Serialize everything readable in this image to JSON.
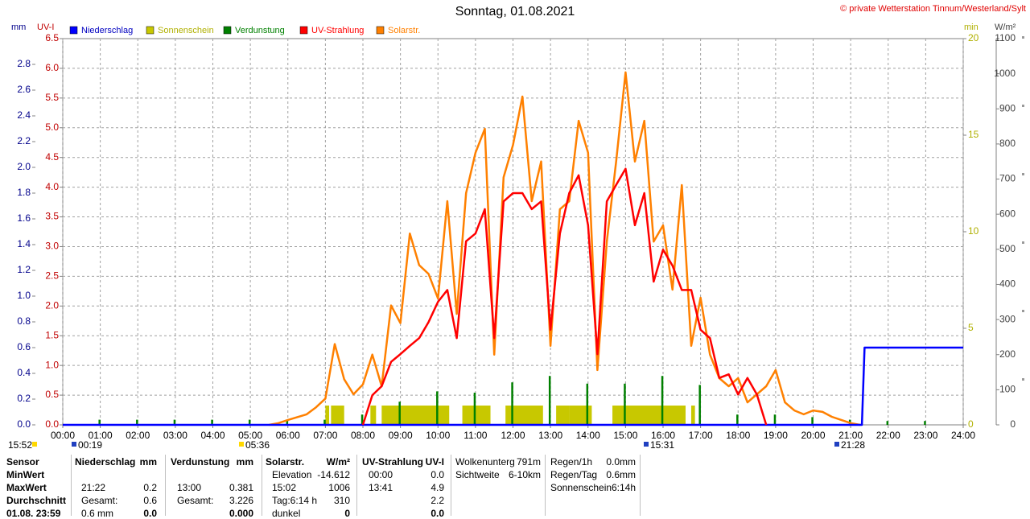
{
  "chart_data": {
    "type": "weather",
    "title": "Sonntag, 01.08.2021",
    "credit": "© private Wetterstation Tinnum/Westerland/Sylt",
    "axis_titles": {
      "mm": "mm",
      "uv": "UV-I",
      "min": "min",
      "solar": "W/m²"
    },
    "xlim": [
      0,
      24
    ],
    "xticks": [
      {
        "value": 0,
        "label": "00:00"
      },
      {
        "value": 1,
        "label": "01:00"
      },
      {
        "value": 2,
        "label": "02:00"
      },
      {
        "value": 3,
        "label": "03:00"
      },
      {
        "value": 4,
        "label": "04:00"
      },
      {
        "value": 5,
        "label": "05:00"
      },
      {
        "value": 6,
        "label": "06:00"
      },
      {
        "value": 7,
        "label": "07:00"
      },
      {
        "value": 8,
        "label": "08:00"
      },
      {
        "value": 9,
        "label": "09:00"
      },
      {
        "value": 10,
        "label": "10:00"
      },
      {
        "value": 11,
        "label": "11:00"
      },
      {
        "value": 12,
        "label": "12:00"
      },
      {
        "value": 13,
        "label": "13:00"
      },
      {
        "value": 14,
        "label": "14:00"
      },
      {
        "value": 15,
        "label": "15:00"
      },
      {
        "value": 16,
        "label": "16:00"
      },
      {
        "value": 17,
        "label": "17:00"
      },
      {
        "value": 18,
        "label": "18:00"
      },
      {
        "value": 19,
        "label": "19:00"
      },
      {
        "value": 20,
        "label": "20:00"
      },
      {
        "value": 21,
        "label": "21:00"
      },
      {
        "value": 22,
        "label": "22:00"
      },
      {
        "value": 23,
        "label": "23:00"
      },
      {
        "value": 24,
        "label": "24:00"
      }
    ],
    "ylim": [
      0,
      3
    ],
    "yticks": [
      {
        "value": 0,
        "label": "0.0"
      },
      0.2,
      0.4,
      0.6,
      0.8,
      {
        "value": 1,
        "label": "1.0"
      },
      1.2,
      1.4,
      1.6,
      1.8,
      {
        "value": 2,
        "label": "2.0"
      },
      2.2,
      2.4,
      2.6,
      2.8
    ],
    "y_uv_lim": [
      0,
      6.5
    ],
    "y_uv_ticks": [
      {
        "value": 0,
        "label": "0.0"
      },
      0.5,
      {
        "value": 1,
        "label": "1.0"
      },
      1.5,
      {
        "value": 2,
        "label": "2.0"
      },
      2.5,
      {
        "value": 3,
        "label": "3.0"
      },
      3.5,
      {
        "value": 4,
        "label": "4.0"
      },
      4.5,
      {
        "value": 5,
        "label": "5.0"
      },
      5.5,
      {
        "value": 6,
        "label": "6.0"
      },
      6.5
    ],
    "y2lim": [
      0,
      20
    ],
    "y2ticks": [
      0,
      5,
      10,
      15,
      20
    ],
    "y_solar_lim": [
      0,
      1100
    ],
    "y_solar_ticks": [
      0,
      100,
      200,
      300,
      400,
      500,
      600,
      700,
      800,
      900,
      1000,
      1100
    ],
    "grid": true,
    "series": [
      {
        "name": "Niederschlag",
        "color": "#0000ff",
        "axis": "y",
        "kind": "step",
        "x": [
          0,
          21.3,
          21.37,
          24
        ],
        "values": [
          0,
          0,
          0.6,
          0.6
        ]
      },
      {
        "name": "Sonnenschein",
        "color": "#c8c800",
        "axis": "y2",
        "kind": "span",
        "x_start": [
          7.0,
          7.15,
          8.2,
          8.5,
          10.65,
          11.8,
          13.15,
          13.5,
          14.65,
          16.75
        ],
        "x_end": [
          7.1,
          7.5,
          8.35,
          10.3,
          11.4,
          12.8,
          13.5,
          14.1,
          16.6,
          16.85
        ],
        "values": [
          1,
          1,
          1,
          1,
          1,
          1,
          1,
          1,
          1,
          1
        ]
      },
      {
        "name": "Verdunstung",
        "color": "#008000",
        "axis": "y",
        "kind": "spike",
        "x": [
          0.98,
          1.98,
          2.98,
          3.98,
          4.98,
          5.98,
          6.98,
          7.98,
          8.98,
          9.98,
          10.98,
          11.98,
          12.98,
          13.98,
          14.98,
          15.98,
          16.98,
          17.98,
          18.98,
          19.98,
          20.98,
          21.98,
          22.98
        ],
        "values": [
          0.04,
          0.04,
          0.04,
          0.04,
          0.04,
          0.04,
          0.04,
          0.08,
          0.18,
          0.26,
          0.25,
          0.33,
          0.38,
          0.32,
          0.32,
          0.38,
          0.31,
          0.08,
          0.08,
          0.06,
          0.04,
          0.03,
          0.03
        ]
      },
      {
        "name": "UV-Strahlung",
        "color": "#ff0000",
        "axis": "uv",
        "kind": "line",
        "x": [
          5.5,
          5.75,
          6,
          6.25,
          6.5,
          6.75,
          7,
          7.25,
          7.5,
          7.75,
          8,
          8.25,
          8.5,
          8.75,
          9,
          9.25,
          9.5,
          9.75,
          10,
          10.25,
          10.5,
          10.75,
          11,
          11.25,
          11.5,
          11.75,
          12,
          12.25,
          12.5,
          12.75,
          13,
          13.25,
          13.5,
          13.75,
          14,
          14.25,
          14.5,
          14.75,
          15,
          15.25,
          15.5,
          15.75,
          16,
          16.25,
          16.5,
          16.75,
          17,
          17.25,
          17.5,
          17.75,
          18,
          18.25,
          18.5,
          18.75,
          19,
          19.25,
          19.5,
          19.75,
          20,
          20.25,
          20.5,
          20.75,
          21,
          21.25
        ],
        "values": [
          null,
          null,
          null,
          null,
          null,
          null,
          null,
          null,
          null,
          null,
          0,
          0.5,
          0.65,
          1.06,
          1.19,
          1.33,
          1.46,
          1.73,
          2.07,
          2.27,
          1.46,
          3.09,
          3.22,
          3.63,
          1.46,
          3.76,
          3.9,
          3.9,
          3.63,
          3.76,
          1.6,
          3.22,
          3.9,
          4.2,
          3.36,
          1.19,
          3.76,
          4.04,
          4.31,
          3.36,
          3.9,
          2.41,
          2.95,
          2.68,
          2.27,
          2.27,
          1.6,
          1.46,
          0.79,
          0.85,
          0.51,
          0.79,
          0.51,
          0,
          null,
          null,
          null,
          null,
          null,
          null,
          null,
          null,
          null,
          null
        ]
      },
      {
        "name": "Solarstr.",
        "color": "#ff8000",
        "axis": "solar",
        "kind": "line",
        "x": [
          5.5,
          5.75,
          6,
          6.25,
          6.5,
          6.75,
          7,
          7.25,
          7.5,
          7.75,
          8,
          8.25,
          8.5,
          8.75,
          9,
          9.25,
          9.5,
          9.75,
          10,
          10.25,
          10.5,
          10.75,
          11,
          11.25,
          11.5,
          11.75,
          12,
          12.25,
          12.5,
          12.75,
          13,
          13.25,
          13.5,
          13.75,
          14,
          14.25,
          14.5,
          14.75,
          15,
          15.25,
          15.5,
          15.75,
          16,
          16.25,
          16.5,
          16.75,
          17,
          17.25,
          17.5,
          17.75,
          18,
          18.25,
          18.5,
          18.75,
          19,
          19.25,
          19.5,
          19.75,
          20,
          20.25,
          20.5,
          20.75,
          21,
          21.25
        ],
        "values": [
          0,
          5,
          14,
          22,
          30,
          50,
          75,
          230,
          130,
          87,
          115,
          200,
          110,
          340,
          290,
          545,
          455,
          430,
          360,
          637,
          316,
          660,
          775,
          843,
          200,
          705,
          797,
          935,
          637,
          750,
          225,
          614,
          637,
          866,
          775,
          156,
          522,
          750,
          1004,
          750,
          866,
          522,
          568,
          385,
          683,
          225,
          362,
          200,
          133,
          110,
          133,
          64,
          87,
          110,
          156,
          64,
          41,
          30,
          41,
          37,
          23,
          14,
          5,
          0
        ]
      }
    ],
    "markers": [
      "15:52",
      "00:19",
      "05:36",
      "15:31",
      "21:28"
    ]
  },
  "stats": {
    "row_labels": [
      "Sensor",
      "MinWert",
      "MaxWert",
      "Durchschnitt",
      "01.08. 23:59"
    ],
    "columns": [
      {
        "header": [
          "Niederschlag",
          "mm"
        ],
        "rows": [
          null,
          [
            "21:22",
            "0.2"
          ],
          [
            "Gesamt:",
            "0.6"
          ],
          [
            "0.6 mm",
            "0.0"
          ]
        ]
      },
      {
        "header": [
          "Verdunstung",
          "mm"
        ],
        "rows": [
          null,
          [
            "13:00",
            "0.381"
          ],
          [
            "Gesamt:",
            "3.226"
          ],
          [
            null,
            "0.000"
          ]
        ]
      },
      {
        "header": [
          "Solarstr.",
          "W/m²"
        ],
        "rows": [
          [
            "Elevation",
            "-14.612"
          ],
          [
            "15:02",
            "1006"
          ],
          [
            "Tag:6:14 h",
            "310"
          ],
          [
            "dunkel",
            "0"
          ]
        ]
      },
      {
        "header": [
          "UV-Strahlung",
          "UV-I"
        ],
        "rows": [
          [
            "00:00",
            "0.0"
          ],
          [
            "13:41",
            "4.9"
          ],
          [
            null,
            "2.2"
          ],
          [
            null,
            "0.0"
          ]
        ]
      },
      {
        "header": [
          "Wolkenunterg",
          "791m"
        ],
        "rows": [
          [
            "Sichtweite",
            "6-10km"
          ]
        ]
      },
      {
        "header": [
          "Regen/1h",
          "0.0mm"
        ],
        "rows": [
          [
            "Regen/Tag",
            "0.6mm"
          ],
          [
            "Sonnenschein",
            "6:14h"
          ]
        ]
      }
    ]
  }
}
